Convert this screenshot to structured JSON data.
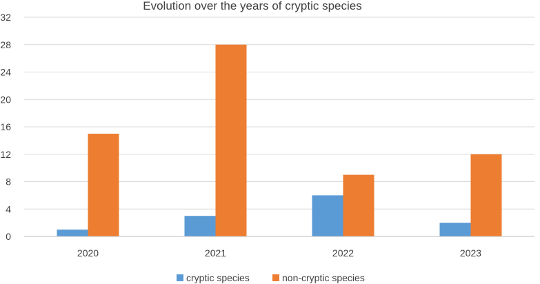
{
  "chart_data": {
    "type": "bar",
    "title": "Evolution over the years of cryptic species",
    "xlabel": "",
    "ylabel": "",
    "categories": [
      "2020",
      "2021",
      "2022",
      "2023"
    ],
    "series": [
      {
        "name": "cryptic species",
        "color": "#5b9bd5",
        "values": [
          1,
          3,
          6,
          2
        ]
      },
      {
        "name": "non-cryptic species",
        "color": "#ed7d31",
        "values": [
          15,
          28,
          9,
          12
        ]
      }
    ],
    "ylim": [
      0,
      32
    ],
    "yticks": [
      0,
      4,
      8,
      12,
      16,
      20,
      24,
      28,
      32
    ],
    "ytick_labels": [
      "0",
      "4",
      "8",
      "12",
      "16",
      "20",
      "24",
      "28",
      "32"
    ],
    "grid": true,
    "legend_position": "bottom"
  }
}
